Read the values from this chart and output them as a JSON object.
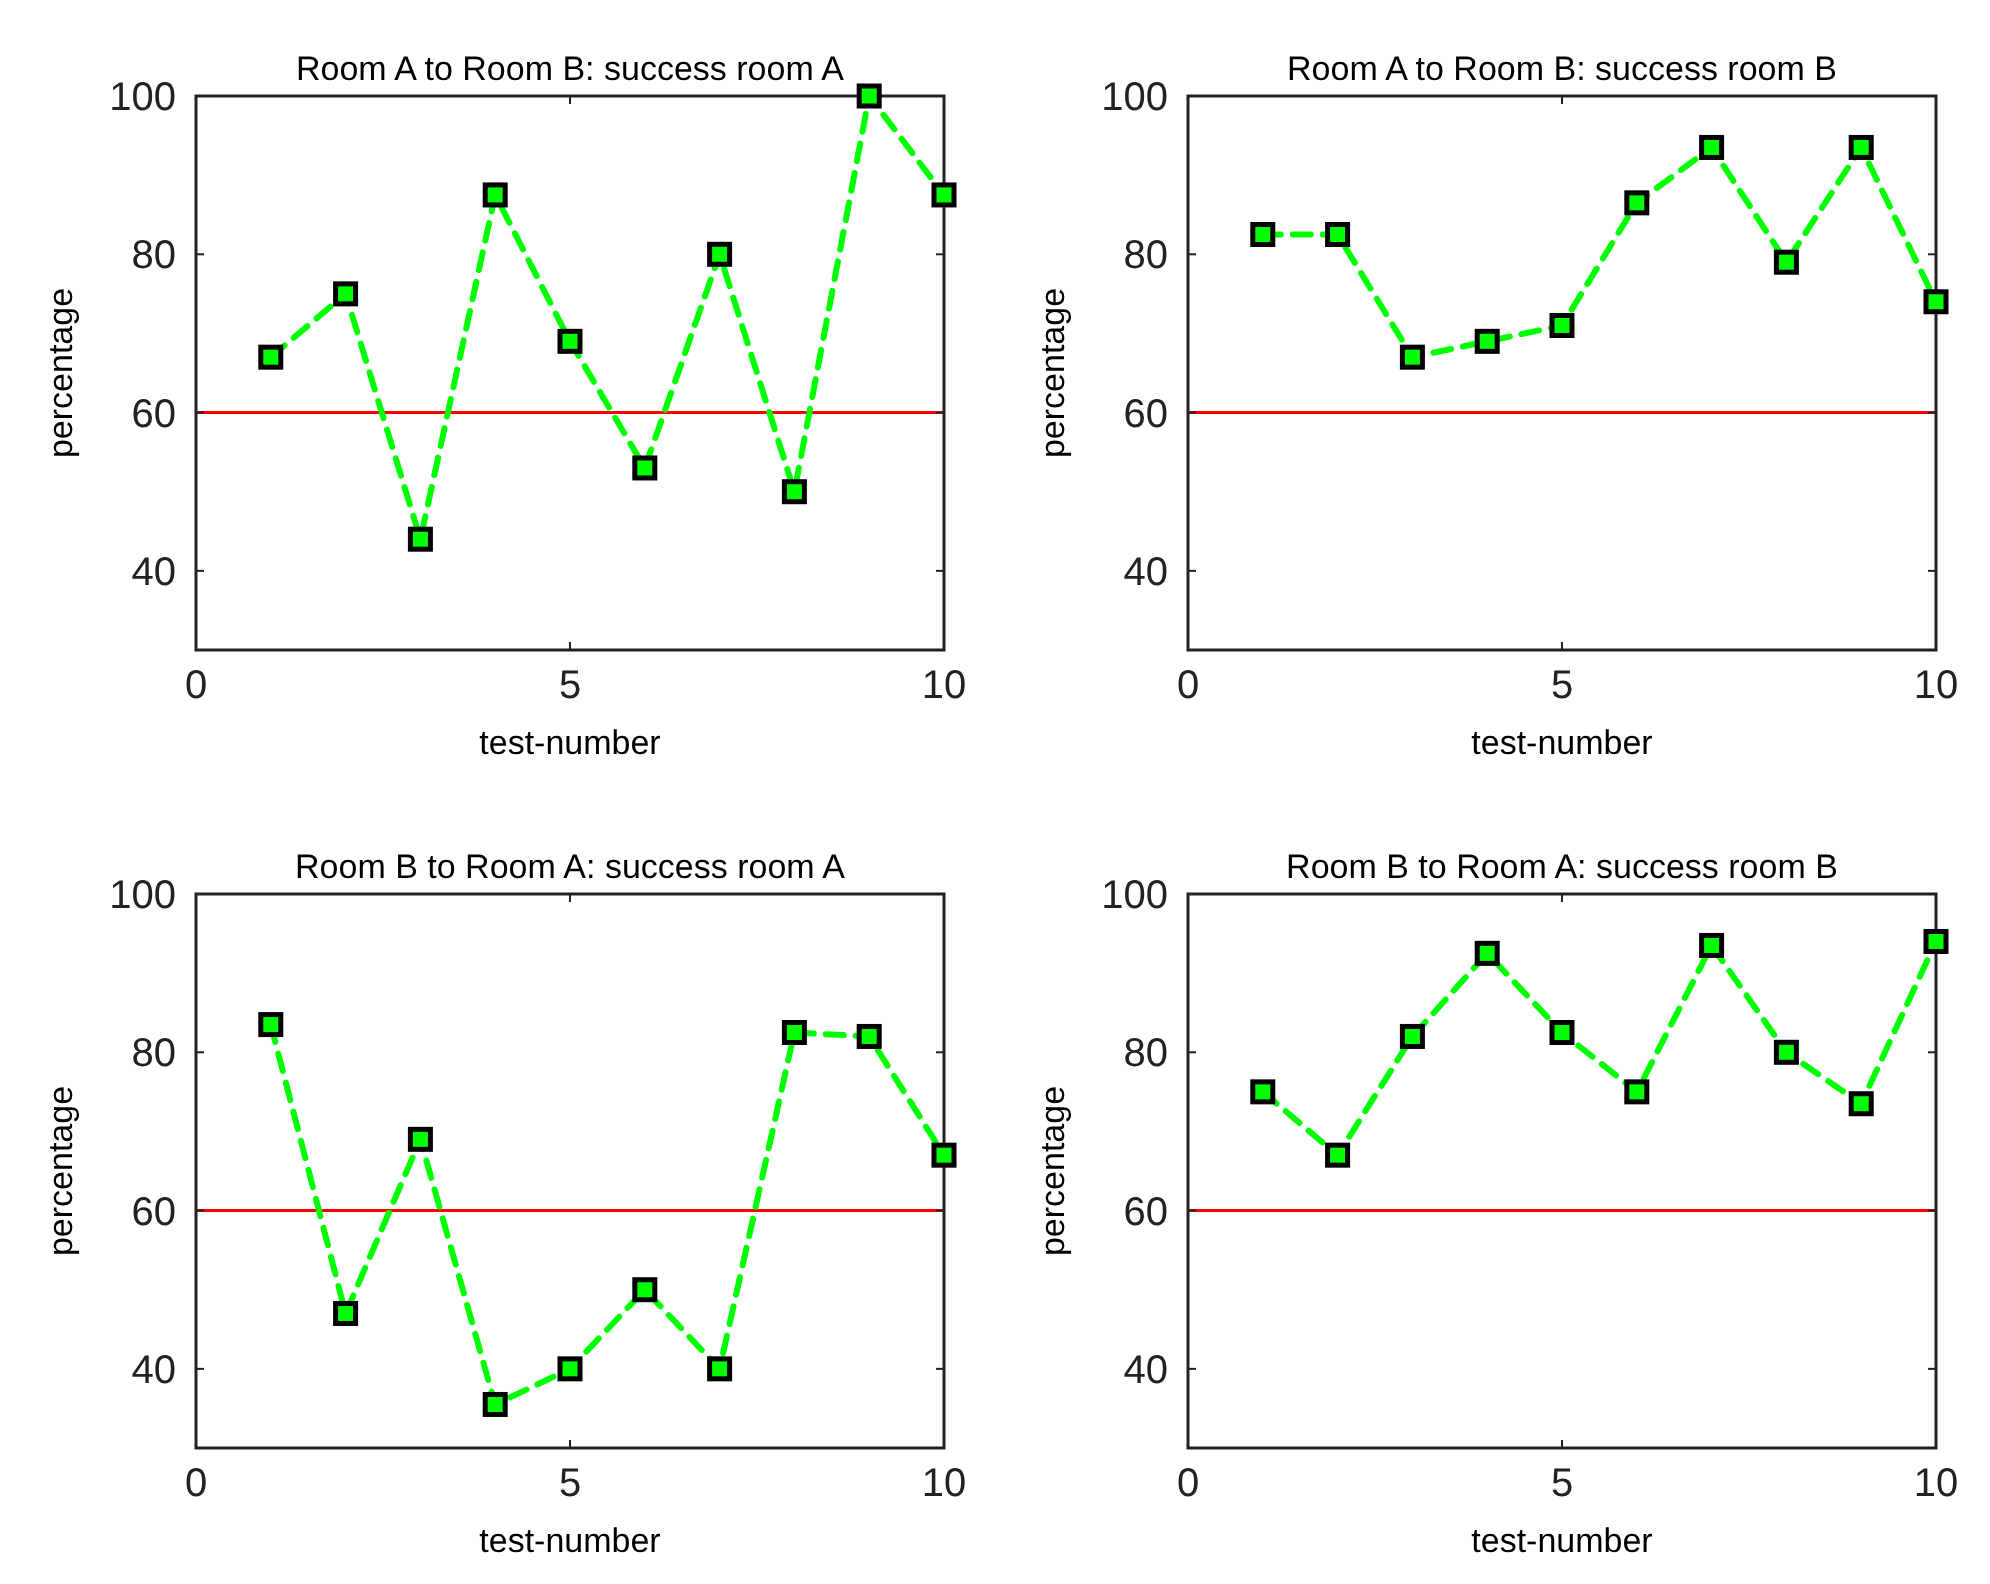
{
  "chart_data": [
    {
      "type": "line",
      "title": "Room A to Room B: success room A",
      "xlabel": "test-number",
      "ylabel": "percentage",
      "x": [
        1,
        2,
        3,
        4,
        5,
        6,
        7,
        8,
        9,
        10
      ],
      "xlim": [
        0,
        10
      ],
      "xticks": [
        0,
        5,
        10
      ],
      "ylim": [
        30,
        100
      ],
      "yticks": [
        40,
        60,
        80,
        100
      ],
      "marker": "square",
      "line_style": "dashed",
      "grid": false,
      "series": [
        {
          "color": "#00ff00",
          "values": [
            67,
            75,
            44,
            87.5,
            69,
            53,
            80,
            50,
            100,
            87.5
          ]
        }
      ],
      "ref_lines": [
        {
          "axis": "y",
          "value": 60,
          "color": "#ff0000"
        }
      ]
    },
    {
      "type": "line",
      "title": "Room A to Room B: success room B",
      "xlabel": "test-number",
      "ylabel": "percentage",
      "x": [
        1,
        2,
        3,
        4,
        5,
        6,
        7,
        8,
        9,
        10
      ],
      "xlim": [
        0,
        10
      ],
      "xticks": [
        0,
        5,
        10
      ],
      "ylim": [
        30,
        100
      ],
      "yticks": [
        40,
        60,
        80,
        100
      ],
      "marker": "square",
      "line_style": "dashed",
      "grid": false,
      "series": [
        {
          "color": "#00ff00",
          "values": [
            82.5,
            82.5,
            67,
            69,
            71,
            86.5,
            93.5,
            79,
            93.5,
            74
          ]
        }
      ],
      "ref_lines": [
        {
          "axis": "y",
          "value": 60,
          "color": "#ff0000"
        }
      ]
    },
    {
      "type": "line",
      "title": "Room B to Room A: success room A",
      "xlabel": "test-number",
      "ylabel": "percentage",
      "x": [
        1,
        2,
        3,
        4,
        5,
        6,
        7,
        8,
        9,
        10
      ],
      "xlim": [
        0,
        10
      ],
      "xticks": [
        0,
        5,
        10
      ],
      "ylim": [
        30,
        100
      ],
      "yticks": [
        40,
        60,
        80,
        100
      ],
      "marker": "square",
      "line_style": "dashed",
      "grid": false,
      "series": [
        {
          "color": "#00ff00",
          "values": [
            83.5,
            47,
            69,
            35.5,
            40,
            50,
            40,
            82.5,
            82,
            67
          ]
        }
      ],
      "ref_lines": [
        {
          "axis": "y",
          "value": 60,
          "color": "#ff0000"
        }
      ]
    },
    {
      "type": "line",
      "title": "Room B to Room A: success room B",
      "xlabel": "test-number",
      "ylabel": "percentage",
      "x": [
        1,
        2,
        3,
        4,
        5,
        6,
        7,
        8,
        9,
        10
      ],
      "xlim": [
        0,
        10
      ],
      "xticks": [
        0,
        5,
        10
      ],
      "ylim": [
        30,
        100
      ],
      "yticks": [
        40,
        60,
        80,
        100
      ],
      "marker": "square",
      "line_style": "dashed",
      "grid": false,
      "series": [
        {
          "color": "#00ff00",
          "values": [
            75,
            67,
            82,
            92.5,
            82.5,
            75,
            93.5,
            80,
            73.5,
            94
          ]
        }
      ],
      "ref_lines": [
        {
          "axis": "y",
          "value": 60,
          "color": "#ff0000"
        }
      ]
    }
  ]
}
